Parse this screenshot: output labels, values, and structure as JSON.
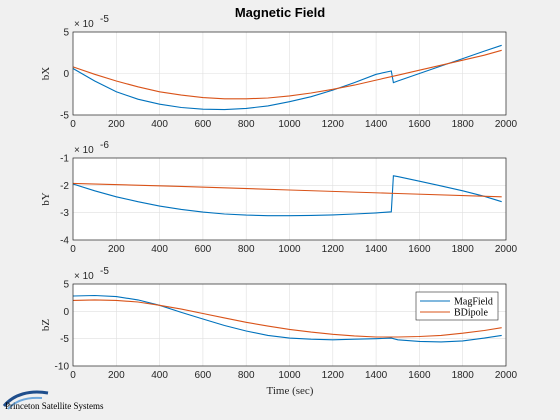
{
  "chart_data": {
    "title": "Magnetic Field",
    "xlabel": "Time (sec)",
    "legend": {
      "entries": [
        "MagField",
        "BDipole"
      ],
      "placement": "top-right",
      "panel": 2
    },
    "colors": {
      "MagField": "#0072bd",
      "BDipole": "#d95319"
    },
    "grid": true,
    "panels": [
      {
        "type": "line",
        "ylabel": "bX",
        "exponent_label": "× 10",
        "exponent_power": "-5",
        "xlim": [
          0,
          2000
        ],
        "ylim": [
          -5,
          5
        ],
        "xticks": [
          "0",
          "200",
          "400",
          "600",
          "800",
          "1000",
          "1200",
          "1400",
          "1600",
          "1800",
          "2000"
        ],
        "yticks": [
          "-5",
          "0",
          "5"
        ],
        "series": [
          {
            "name": "MagField",
            "x": [
              0,
              100,
              200,
              300,
              400,
              500,
              600,
              700,
              800,
              900,
              1000,
              1100,
              1200,
              1300,
              1400,
              1470,
              1480,
              1500,
              1600,
              1700,
              1800,
              1900,
              1980
            ],
            "y": [
              0.6,
              -0.9,
              -2.2,
              -3.1,
              -3.7,
              -4.1,
              -4.3,
              -4.35,
              -4.2,
              -3.9,
              -3.4,
              -2.8,
              -2.0,
              -1.1,
              -0.1,
              0.3,
              -1.1,
              -0.9,
              0.0,
              0.9,
              1.8,
              2.7,
              3.4
            ]
          },
          {
            "name": "BDipole",
            "x": [
              0,
              100,
              200,
              300,
              400,
              500,
              600,
              700,
              800,
              900,
              1000,
              1100,
              1200,
              1300,
              1400,
              1500,
              1600,
              1700,
              1800,
              1900,
              1980
            ],
            "y": [
              0.8,
              -0.1,
              -0.9,
              -1.6,
              -2.2,
              -2.6,
              -2.9,
              -3.05,
              -3.05,
              -2.95,
              -2.7,
              -2.35,
              -1.9,
              -1.4,
              -0.8,
              -0.2,
              0.4,
              1.0,
              1.6,
              2.2,
              2.8
            ]
          }
        ]
      },
      {
        "type": "line",
        "ylabel": "bY",
        "exponent_label": "× 10",
        "exponent_power": "-6",
        "xlim": [
          0,
          2000
        ],
        "ylim": [
          -4,
          -1
        ],
        "xticks": [
          "0",
          "200",
          "400",
          "600",
          "800",
          "1000",
          "1200",
          "1400",
          "1600",
          "1800",
          "2000"
        ],
        "yticks": [
          "-4",
          "-3",
          "-2",
          "-1"
        ],
        "series": [
          {
            "name": "MagField",
            "x": [
              0,
              100,
              200,
              300,
              400,
              500,
              600,
              700,
              800,
              900,
              1000,
              1100,
              1200,
              1300,
              1400,
              1470,
              1480,
              1500,
              1600,
              1700,
              1800,
              1900,
              1980
            ],
            "y": [
              -1.95,
              -2.2,
              -2.42,
              -2.6,
              -2.76,
              -2.88,
              -2.98,
              -3.05,
              -3.09,
              -3.11,
              -3.11,
              -3.1,
              -3.08,
              -3.05,
              -3.01,
              -2.97,
              -1.65,
              -1.68,
              -1.85,
              -2.02,
              -2.2,
              -2.4,
              -2.6
            ]
          },
          {
            "name": "BDipole",
            "x": [
              0,
              500,
              1000,
              1500,
              1980
            ],
            "y": [
              -1.93,
              -2.04,
              -2.17,
              -2.3,
              -2.42
            ]
          }
        ]
      },
      {
        "type": "line",
        "ylabel": "bZ",
        "exponent_label": "× 10",
        "exponent_power": "-5",
        "xlim": [
          0,
          2000
        ],
        "ylim": [
          -10,
          5
        ],
        "xticks": [
          "0",
          "200",
          "400",
          "600",
          "800",
          "1000",
          "1200",
          "1400",
          "1600",
          "1800",
          "2000"
        ],
        "yticks": [
          "-10",
          "-5",
          "0",
          "5"
        ],
        "series": [
          {
            "name": "MagField",
            "x": [
              0,
              100,
              200,
              300,
              400,
              500,
              600,
              700,
              800,
              900,
              1000,
              1100,
              1200,
              1300,
              1400,
              1470,
              1500,
              1600,
              1700,
              1800,
              1900,
              1980
            ],
            "y": [
              2.8,
              2.9,
              2.7,
              2.1,
              1.1,
              -0.2,
              -1.4,
              -2.6,
              -3.6,
              -4.4,
              -4.9,
              -5.1,
              -5.2,
              -5.1,
              -5.0,
              -4.9,
              -5.2,
              -5.5,
              -5.6,
              -5.4,
              -4.9,
              -4.4
            ]
          },
          {
            "name": "BDipole",
            "x": [
              0,
              100,
              200,
              300,
              400,
              500,
              600,
              700,
              800,
              900,
              1000,
              1100,
              1200,
              1300,
              1400,
              1500,
              1600,
              1700,
              1800,
              1900,
              1980
            ],
            "y": [
              2.0,
              2.1,
              2.0,
              1.7,
              1.1,
              0.4,
              -0.4,
              -1.2,
              -2.0,
              -2.7,
              -3.3,
              -3.8,
              -4.2,
              -4.5,
              -4.7,
              -4.7,
              -4.6,
              -4.4,
              -4.0,
              -3.5,
              -3.0
            ]
          }
        ]
      }
    ]
  },
  "footer": {
    "logo_text": "Princeton Satellite Systems"
  }
}
